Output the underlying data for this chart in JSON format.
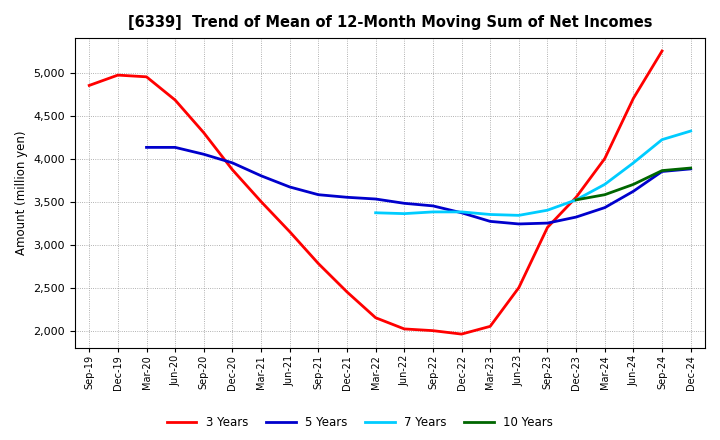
{
  "title": "[6339]  Trend of Mean of 12-Month Moving Sum of Net Incomes",
  "ylabel": "Amount (million yen)",
  "ylim": [
    1800,
    5400
  ],
  "yticks": [
    2000,
    2500,
    3000,
    3500,
    4000,
    4500,
    5000
  ],
  "background_color": "#ffffff",
  "plot_bg_color": "#ffffff",
  "grid_color": "#aaaaaa",
  "x_labels": [
    "Sep-19",
    "Dec-19",
    "Mar-20",
    "Jun-20",
    "Sep-20",
    "Dec-20",
    "Mar-21",
    "Jun-21",
    "Sep-21",
    "Dec-21",
    "Mar-22",
    "Jun-22",
    "Sep-22",
    "Dec-22",
    "Mar-23",
    "Jun-23",
    "Sep-23",
    "Dec-23",
    "Mar-24",
    "Jun-24",
    "Sep-24",
    "Dec-24"
  ],
  "series": {
    "3 Years": {
      "color": "#ff0000",
      "data": {
        "Sep-19": 4850,
        "Dec-19": 4970,
        "Mar-20": 4950,
        "Jun-20": 4680,
        "Sep-20": 4300,
        "Dec-20": 3870,
        "Mar-21": 3500,
        "Jun-21": 3150,
        "Sep-21": 2780,
        "Dec-21": 2450,
        "Mar-22": 2150,
        "Jun-22": 2020,
        "Sep-22": 2000,
        "Dec-22": 1960,
        "Mar-23": 2050,
        "Jun-23": 2500,
        "Sep-23": 3200,
        "Dec-23": 3550,
        "Mar-24": 4000,
        "Jun-24": 4700,
        "Sep-24": 5250
      }
    },
    "5 Years": {
      "color": "#0000cc",
      "data": {
        "Mar-20": 4130,
        "Jun-20": 4130,
        "Sep-20": 4050,
        "Dec-20": 3950,
        "Mar-21": 3800,
        "Jun-21": 3670,
        "Sep-21": 3580,
        "Dec-21": 3550,
        "Mar-22": 3530,
        "Jun-22": 3480,
        "Sep-22": 3450,
        "Dec-22": 3370,
        "Mar-23": 3270,
        "Jun-23": 3240,
        "Sep-23": 3250,
        "Dec-23": 3320,
        "Mar-24": 3430,
        "Jun-24": 3620,
        "Sep-24": 3850,
        "Dec-24": 3880
      }
    },
    "7 Years": {
      "color": "#00ccff",
      "data": {
        "Mar-22": 3370,
        "Jun-22": 3360,
        "Sep-22": 3380,
        "Dec-22": 3380,
        "Mar-23": 3350,
        "Jun-23": 3340,
        "Sep-23": 3400,
        "Dec-23": 3520,
        "Mar-24": 3700,
        "Jun-24": 3950,
        "Sep-24": 4220,
        "Dec-24": 4320
      }
    },
    "10 Years": {
      "color": "#006600",
      "data": {
        "Dec-23": 3520,
        "Mar-24": 3580,
        "Jun-24": 3700,
        "Sep-24": 3860,
        "Dec-24": 3890
      }
    }
  },
  "legend_order": [
    "3 Years",
    "5 Years",
    "7 Years",
    "10 Years"
  ]
}
